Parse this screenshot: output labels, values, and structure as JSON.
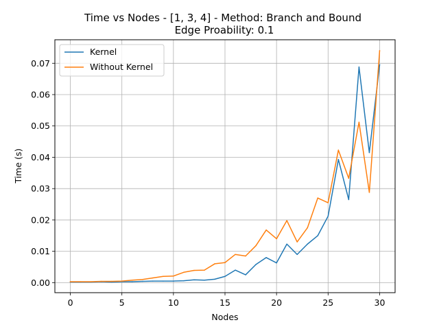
{
  "chart_data": {
    "type": "line",
    "title": "Time vs Nodes - [1, 3, 4] - Method: Branch and Bound",
    "subtitle": "Edge Proability: 0.1",
    "xlabel": "Nodes",
    "ylabel": "Time (s)",
    "xlim": [
      -1.5,
      31.5
    ],
    "ylim": [
      -0.0032,
      0.0775
    ],
    "xticks": [
      0,
      5,
      10,
      15,
      20,
      25,
      30
    ],
    "yticks": [
      0.0,
      0.01,
      0.02,
      0.03,
      0.04,
      0.05,
      0.06,
      0.07
    ],
    "xtick_labels": [
      "0",
      "5",
      "10",
      "15",
      "20",
      "25",
      "30"
    ],
    "ytick_labels": [
      "0.00",
      "0.01",
      "0.02",
      "0.03",
      "0.04",
      "0.05",
      "0.06",
      "0.07"
    ],
    "grid": true,
    "legend_position": "top-left",
    "x": [
      0,
      1,
      2,
      3,
      4,
      5,
      6,
      7,
      8,
      9,
      10,
      11,
      12,
      13,
      14,
      15,
      16,
      17,
      18,
      19,
      20,
      21,
      22,
      23,
      24,
      25,
      26,
      27,
      28,
      29,
      30
    ],
    "series": [
      {
        "name": "Kernel",
        "color": "#1f77b4",
        "values": [
          0.0002,
          0.0002,
          0.0002,
          0.0003,
          0.0002,
          0.0003,
          0.0003,
          0.0004,
          0.0005,
          0.0005,
          0.0005,
          0.0006,
          0.0009,
          0.0008,
          0.0011,
          0.002,
          0.004,
          0.0025,
          0.0058,
          0.008,
          0.0063,
          0.0123,
          0.009,
          0.0123,
          0.015,
          0.0212,
          0.0393,
          0.0265,
          0.0688,
          0.0415,
          0.0695
        ]
      },
      {
        "name": "Without Kernel",
        "color": "#ff7f0e",
        "values": [
          0.0003,
          0.0003,
          0.0003,
          0.0004,
          0.0004,
          0.0005,
          0.0008,
          0.001,
          0.0015,
          0.002,
          0.0021,
          0.0033,
          0.0039,
          0.004,
          0.006,
          0.0064,
          0.009,
          0.0085,
          0.0118,
          0.0168,
          0.014,
          0.0198,
          0.013,
          0.0175,
          0.027,
          0.0255,
          0.0423,
          0.0333,
          0.0512,
          0.0288,
          0.074
        ]
      }
    ]
  }
}
